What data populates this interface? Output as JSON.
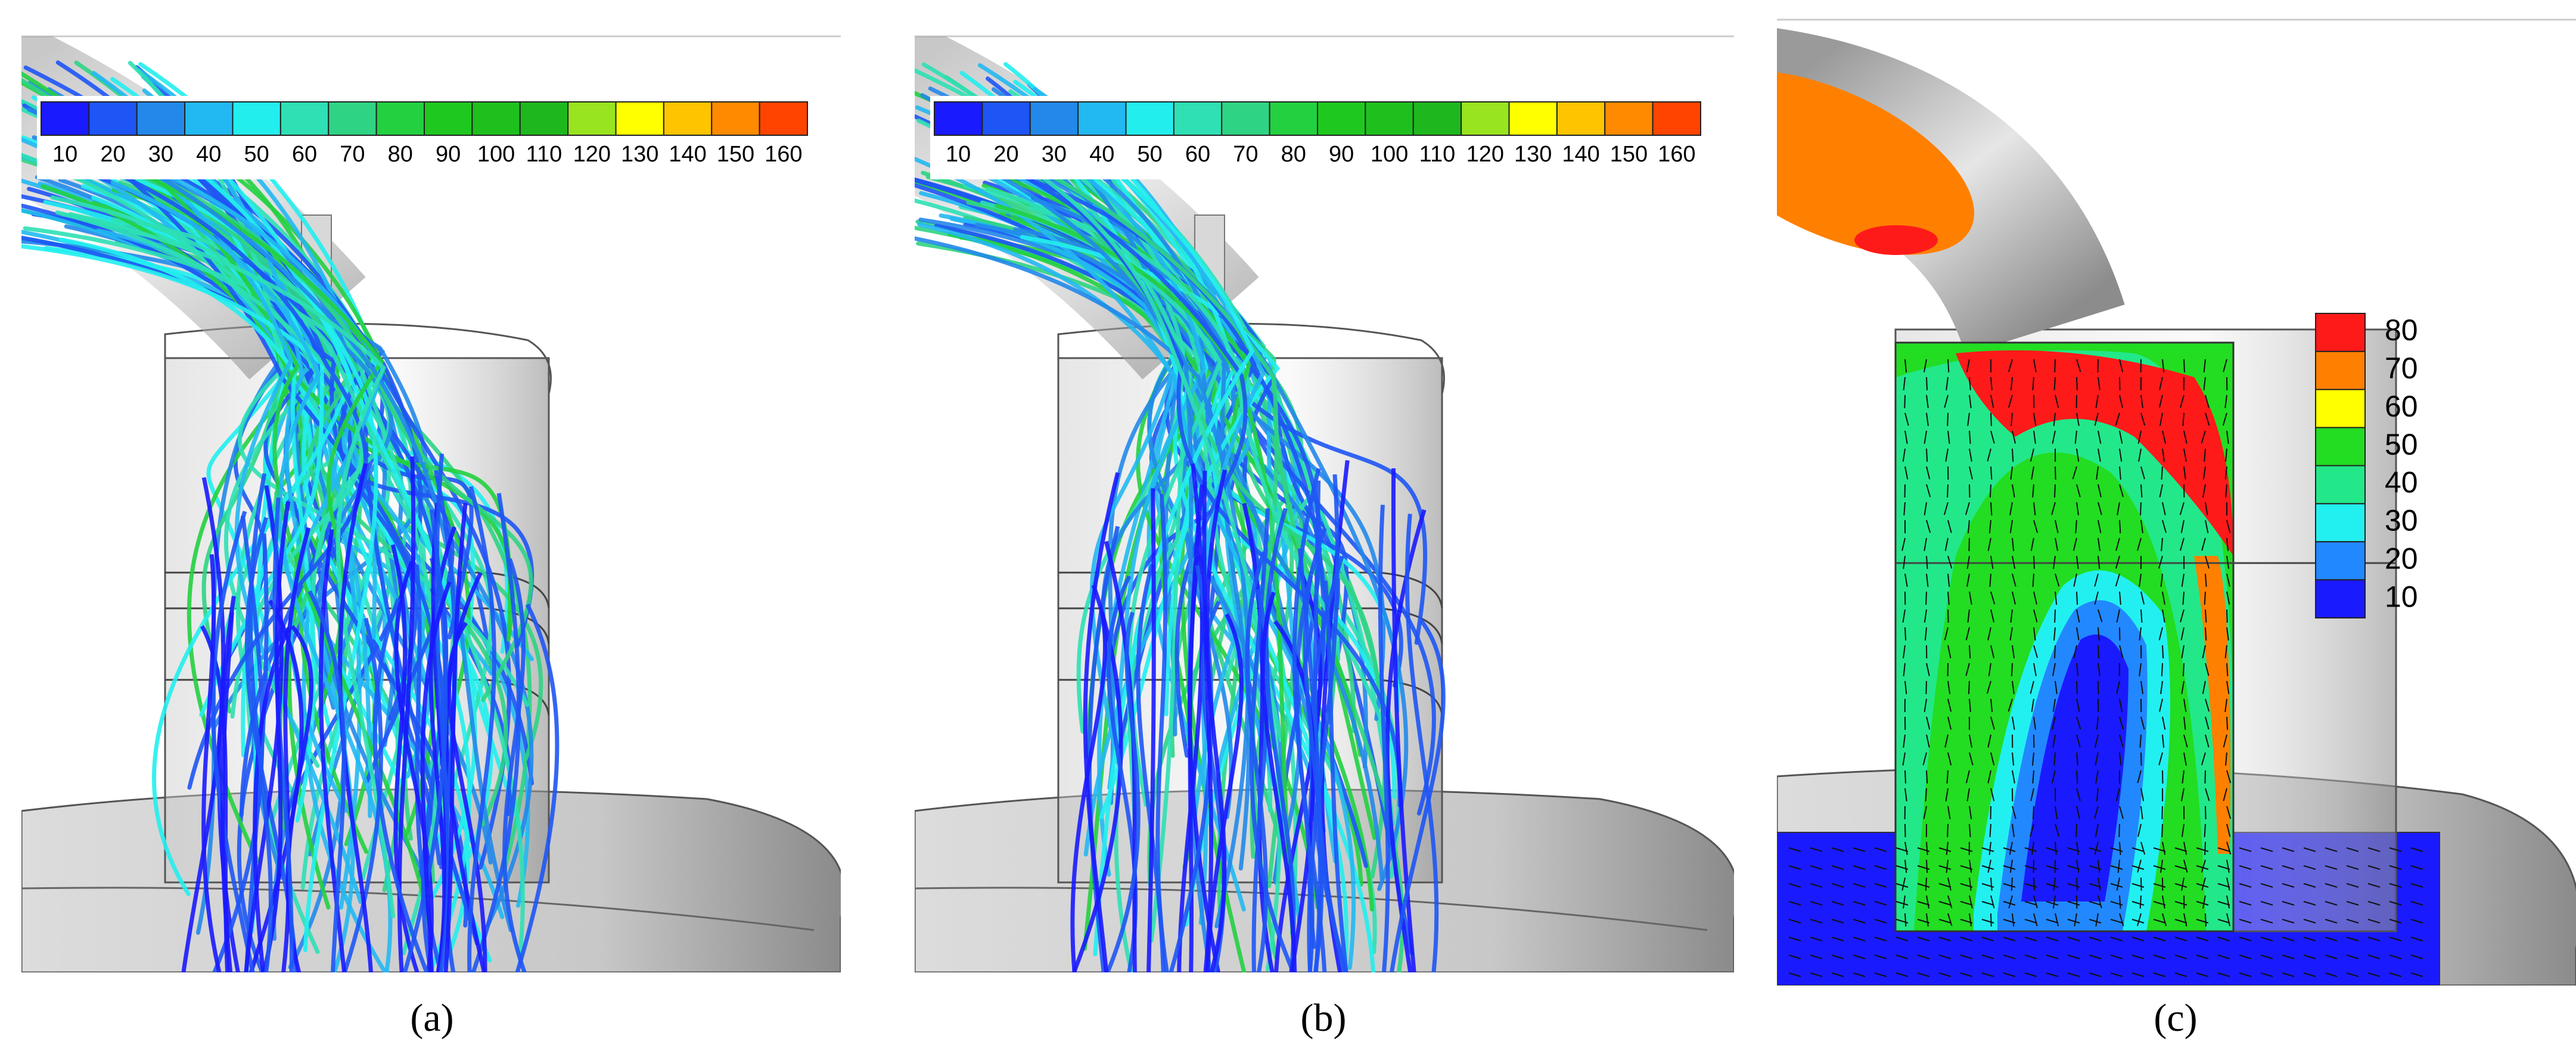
{
  "panels": [
    {
      "label": "(a)",
      "colorbar": {
        "ticks": [
          10,
          20,
          30,
          40,
          50,
          60,
          70,
          80,
          90,
          100,
          110,
          120,
          130,
          140,
          150,
          160
        ],
        "colors": [
          "#1a1aff",
          "#1e55f5",
          "#2288ea",
          "#22b8f2",
          "#22eeee",
          "#2ee0b4",
          "#2ed484",
          "#22d040",
          "#1ec81e",
          "#1ec01e",
          "#1eb81e",
          "#98e41e",
          "#ffff00",
          "#ffc400",
          "#ff8a00",
          "#ff4400"
        ]
      }
    },
    {
      "label": "(b)",
      "colorbar": {
        "ticks": [
          10,
          20,
          30,
          40,
          50,
          60,
          70,
          80,
          90,
          100,
          110,
          120,
          130,
          140,
          150,
          160
        ],
        "colors": [
          "#1a1aff",
          "#1e55f5",
          "#2288ea",
          "#22b8f2",
          "#22eeee",
          "#2ee0b4",
          "#2ed484",
          "#22d040",
          "#1ec81e",
          "#1ec01e",
          "#1eb81e",
          "#98e41e",
          "#ffff00",
          "#ffc400",
          "#ff8a00",
          "#ff4400"
        ]
      }
    },
    {
      "label": "(c)",
      "colorbar": {
        "ticks": [
          80,
          70,
          60,
          50,
          40,
          30,
          20,
          10
        ],
        "colors": [
          "#ff1a1a",
          "#ff8000",
          "#ffff00",
          "#22dd22",
          "#22e88a",
          "#22f0f0",
          "#2288ff",
          "#1a1aff"
        ]
      }
    }
  ]
}
